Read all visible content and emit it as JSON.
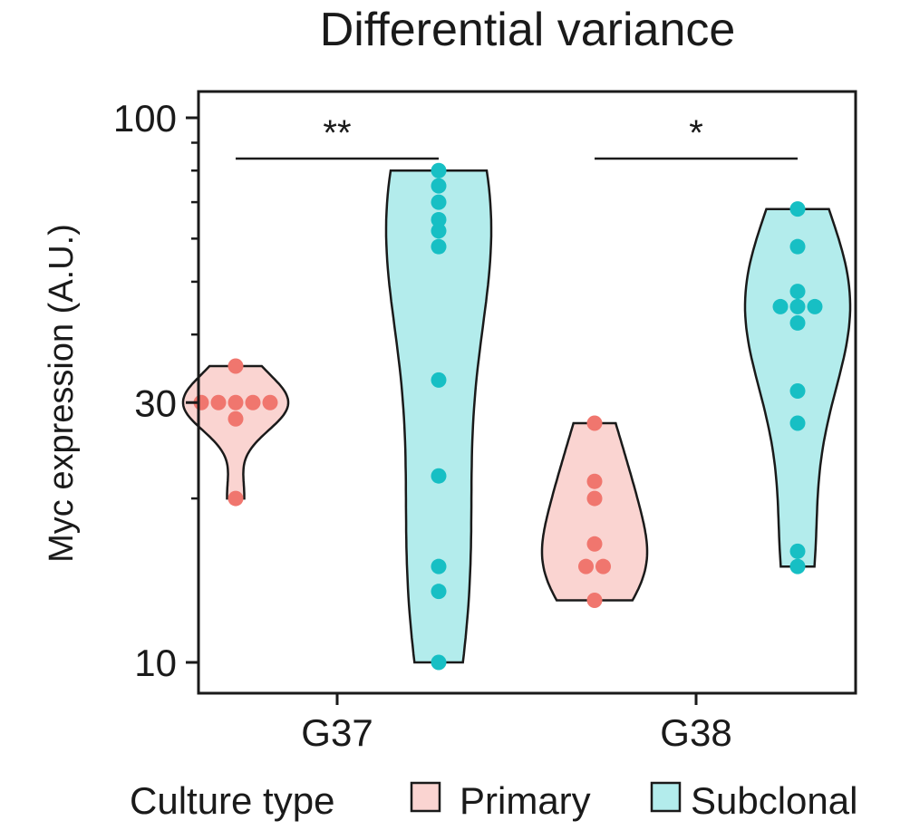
{
  "chart_data": {
    "type": "violin",
    "title": "Differential variance",
    "ylabel": "Myc expression (A.U.)",
    "xlabel": "",
    "yscale": "log10",
    "ylim": [
      9.5,
      110
    ],
    "yticks": [
      {
        "value": 100,
        "label": "100"
      },
      {
        "value": 30,
        "label": "30"
      },
      {
        "value": 10,
        "label": "10"
      }
    ],
    "minor_yticks": [
      20,
      40,
      50,
      60,
      70,
      80,
      90
    ],
    "categories": [
      "G37",
      "G38"
    ],
    "legend": {
      "title": "Culture type",
      "entries": [
        {
          "name": "Primary",
          "fill": "#fad4d1",
          "point": "#f0766e"
        },
        {
          "name": "Subclonal",
          "fill": "#b3ecec",
          "point": "#17bfc4"
        }
      ]
    },
    "series": [
      {
        "name": "Primary",
        "group": "G37",
        "points": [
          35,
          30,
          30,
          30,
          30,
          30,
          28,
          20
        ]
      },
      {
        "name": "Subclonal",
        "group": "G37",
        "points": [
          80,
          75,
          70,
          65,
          62,
          58,
          33,
          22,
          15,
          13.5,
          10
        ]
      },
      {
        "name": "Primary",
        "group": "G38",
        "points": [
          27.5,
          21.5,
          20,
          16.5,
          15,
          15,
          13
        ]
      },
      {
        "name": "Subclonal",
        "group": "G38",
        "points": [
          68,
          58,
          48,
          45,
          45,
          45,
          42,
          31.5,
          27.5,
          16,
          15
        ]
      }
    ],
    "significance": [
      {
        "group": "G37",
        "label": "**"
      },
      {
        "group": "G38",
        "label": "*"
      }
    ]
  }
}
